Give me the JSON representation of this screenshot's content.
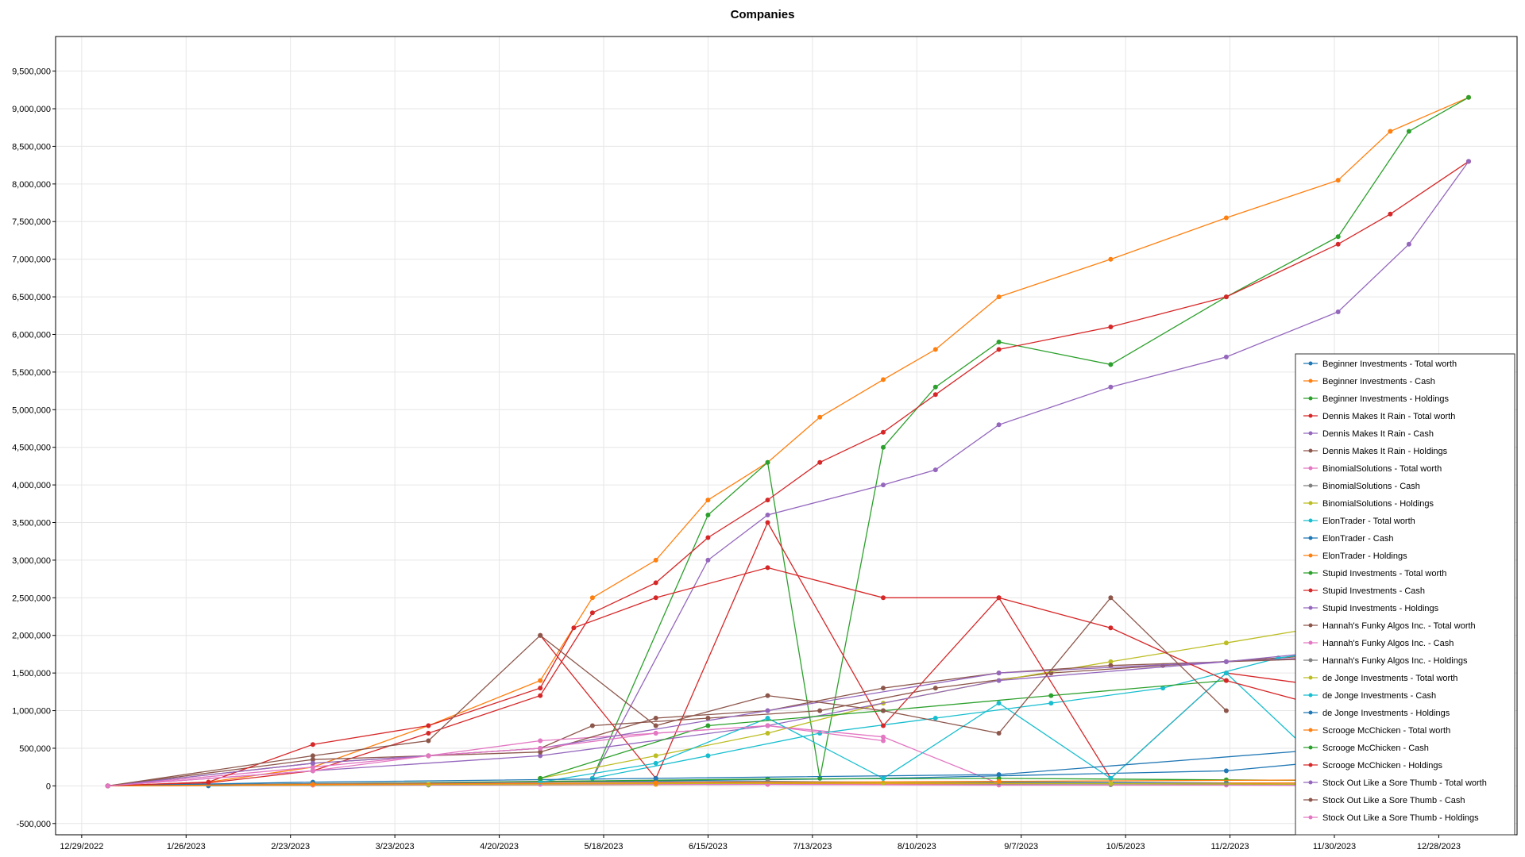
{
  "window": {
    "title": "Companies"
  },
  "chart_data": {
    "type": "line",
    "title": "Companies",
    "xlabel": "",
    "ylabel": "",
    "x_axis_type": "date",
    "xlim": [
      "2022-12-22",
      "2024-01-18"
    ],
    "ylim": [
      -650000,
      9960000
    ],
    "x_ticks": [
      "12/29/2022",
      "1/26/2023",
      "2/23/2023",
      "3/23/2023",
      "4/20/2023",
      "5/18/2023",
      "6/15/2023",
      "7/13/2023",
      "8/10/2023",
      "9/7/2023",
      "10/5/2023",
      "11/2/2023",
      "11/30/2023",
      "12/28/2023"
    ],
    "y_ticks": [
      "-500,000",
      "0",
      "500,000",
      "1,000,000",
      "1,500,000",
      "2,000,000",
      "2,500,000",
      "3,000,000",
      "3,500,000",
      "4,000,000",
      "4,500,000",
      "5,000,000",
      "5,500,000",
      "6,000,000",
      "6,500,000",
      "7,000,000",
      "7,500,000",
      "8,000,000",
      "8,500,000",
      "9,000,000",
      "9,500,000"
    ],
    "grid": true,
    "legend_position": "right",
    "series": [
      {
        "name": "Beginner Investments - Total worth",
        "color": "#1f77b4",
        "x": [
          "2023-01-05",
          "2023-03-01",
          "2023-05-01",
          "2023-07-01",
          "2023-09-01",
          "2023-11-01",
          "2024-01-05"
        ],
        "y": [
          0,
          20000,
          30000,
          40000,
          50000,
          40000,
          30000
        ]
      },
      {
        "name": "Beginner Investments - Cash",
        "color": "#ff7f0e",
        "x": [
          "2023-01-05",
          "2023-02-01",
          "2023-03-01",
          "2023-04-01",
          "2023-05-01",
          "2023-05-15",
          "2023-06-01",
          "2023-06-15",
          "2023-07-01",
          "2023-07-15",
          "2023-08-01",
          "2023-08-15",
          "2023-09-01",
          "2023-10-01",
          "2023-11-01",
          "2023-12-01",
          "2023-12-15",
          "2024-01-05"
        ],
        "y": [
          0,
          50000,
          250000,
          800000,
          1400000,
          2500000,
          3000000,
          3800000,
          4300000,
          4900000,
          5400000,
          5800000,
          6500000,
          7000000,
          7550000,
          8050000,
          8700000,
          9150000
        ]
      },
      {
        "name": "Beginner Investments - Holdings",
        "color": "#2ca02c",
        "x": [
          "2023-05-15",
          "2023-06-15",
          "2023-07-01",
          "2023-07-15",
          "2023-08-01",
          "2023-08-15",
          "2023-09-01",
          "2023-10-01",
          "2023-11-01",
          "2023-12-01",
          "2023-12-20",
          "2024-01-05"
        ],
        "y": [
          100000,
          3600000,
          4300000,
          100000,
          4500000,
          5300000,
          5900000,
          5600000,
          6500000,
          7300000,
          8700000,
          9150000
        ]
      },
      {
        "name": "Dennis Makes It Rain - Total worth",
        "color": "#d62728",
        "x": [
          "2023-01-05",
          "2023-02-01",
          "2023-03-01",
          "2023-04-01",
          "2023-05-01",
          "2023-05-15",
          "2023-06-01",
          "2023-06-15",
          "2023-07-01",
          "2023-07-15",
          "2023-08-01",
          "2023-08-15",
          "2023-09-01",
          "2023-10-01",
          "2023-11-01",
          "2023-12-01",
          "2023-12-15",
          "2024-01-05"
        ],
        "y": [
          0,
          40000,
          200000,
          700000,
          1200000,
          2300000,
          2700000,
          3300000,
          3800000,
          4300000,
          4700000,
          5200000,
          5800000,
          6100000,
          6500000,
          7200000,
          7600000,
          8300000
        ]
      },
      {
        "name": "Dennis Makes It Rain - Cash",
        "color": "#9467bd",
        "x": [
          "2023-05-15",
          "2023-06-15",
          "2023-07-01",
          "2023-08-01",
          "2023-08-15",
          "2023-09-01",
          "2023-10-01",
          "2023-11-01",
          "2023-12-01",
          "2023-12-20",
          "2024-01-05"
        ],
        "y": [
          100000,
          3000000,
          3600000,
          4000000,
          4200000,
          4800000,
          5300000,
          5700000,
          6300000,
          7200000,
          8300000
        ]
      },
      {
        "name": "Dennis Makes It Rain - Holdings",
        "color": "#8c564b",
        "x": [
          "2023-01-05",
          "2023-03-01",
          "2023-04-01",
          "2023-05-01",
          "2023-05-15",
          "2023-06-15",
          "2023-07-15",
          "2023-08-15",
          "2023-09-15",
          "2023-10-15",
          "2023-11-15",
          "2023-12-15"
        ],
        "y": [
          0,
          300000,
          400000,
          500000,
          800000,
          900000,
          1000000,
          1300000,
          1500000,
          1600000,
          1700000,
          1800000
        ]
      },
      {
        "name": "BinomialSolutions - Total worth",
        "color": "#e377c2",
        "x": [
          "2023-01-05",
          "2023-03-01",
          "2023-04-01",
          "2023-05-01",
          "2023-06-01",
          "2023-07-01",
          "2023-08-01",
          "2023-09-01"
        ],
        "y": [
          0,
          250000,
          400000,
          600000,
          700000,
          800000,
          650000,
          30000
        ]
      },
      {
        "name": "BinomialSolutions - Cash",
        "color": "#7f7f7f",
        "x": [
          "2023-01-05",
          "2023-04-01",
          "2023-07-01",
          "2023-10-01",
          "2024-01-05"
        ],
        "y": [
          0,
          10000,
          20000,
          15000,
          10000
        ]
      },
      {
        "name": "BinomialSolutions - Holdings",
        "color": "#bcbd22",
        "x": [
          "2023-05-01",
          "2023-06-01",
          "2023-07-01",
          "2023-08-01",
          "2023-09-01",
          "2023-10-01",
          "2023-11-01",
          "2023-12-01"
        ],
        "y": [
          100000,
          400000,
          700000,
          1100000,
          1400000,
          1650000,
          1900000,
          2150000
        ]
      },
      {
        "name": "ElonTrader - Total worth",
        "color": "#17becf",
        "x": [
          "2023-05-15",
          "2023-06-15",
          "2023-07-15",
          "2023-08-15",
          "2023-09-15",
          "2023-10-15",
          "2023-11-15",
          "2023-12-15"
        ],
        "y": [
          100000,
          400000,
          700000,
          900000,
          1100000,
          1300000,
          1700000,
          1900000
        ]
      },
      {
        "name": "ElonTrader - Cash",
        "color": "#1f77b4",
        "x": [
          "2023-02-01",
          "2023-05-01",
          "2023-08-01",
          "2023-11-01",
          "2024-01-05"
        ],
        "y": [
          0,
          50000,
          100000,
          200000,
          500000
        ]
      },
      {
        "name": "ElonTrader - Holdings",
        "color": "#ff7f0e",
        "x": [
          "2023-01-05",
          "2023-03-01",
          "2023-06-01",
          "2023-09-01",
          "2023-12-01"
        ],
        "y": [
          0,
          10000,
          20000,
          30000,
          40000
        ]
      },
      {
        "name": "Stupid Investments - Total worth",
        "color": "#2ca02c",
        "x": [
          "2023-01-05",
          "2023-03-01",
          "2023-05-01",
          "2023-07-01",
          "2023-09-01",
          "2023-11-01",
          "2024-01-05"
        ],
        "y": [
          0,
          30000,
          60000,
          90000,
          100000,
          80000,
          60000
        ]
      },
      {
        "name": "Stupid Investments - Cash",
        "color": "#d62728",
        "x": [
          "2023-05-01",
          "2023-06-01",
          "2023-07-01",
          "2023-08-01",
          "2023-09-01",
          "2023-10-01",
          "2023-11-01",
          "2023-12-01"
        ],
        "y": [
          2000000,
          100000,
          3500000,
          800000,
          2500000,
          100000,
          1500000,
          1300000
        ]
      },
      {
        "name": "Stupid Investments - Holdings",
        "color": "#9467bd",
        "x": [
          "2023-01-05",
          "2023-03-01",
          "2023-05-01",
          "2023-07-01",
          "2023-09-01",
          "2023-11-01",
          "2024-01-05"
        ],
        "y": [
          0,
          200000,
          400000,
          800000,
          1400000,
          1650000,
          1800000
        ]
      },
      {
        "name": "Hannah's Funky Algos Inc. - Total worth",
        "color": "#8c564b",
        "x": [
          "2023-01-05",
          "2023-03-01",
          "2023-04-01",
          "2023-05-01",
          "2023-06-01",
          "2023-07-01",
          "2023-08-01",
          "2023-09-01",
          "2023-10-01",
          "2023-11-01",
          "2023-12-01"
        ],
        "y": [
          0,
          350000,
          400000,
          450000,
          900000,
          1000000,
          1300000,
          1500000,
          1600000,
          1650000,
          1700000
        ]
      },
      {
        "name": "Hannah's Funky Algos Inc. - Cash",
        "color": "#e377c2",
        "x": [
          "2023-01-05",
          "2023-03-01",
          "2023-05-01",
          "2023-07-01",
          "2023-09-01",
          "2023-11-01",
          "2024-01-05"
        ],
        "y": [
          0,
          10000,
          20000,
          20000,
          10000,
          10000,
          0
        ]
      },
      {
        "name": "Hannah's Funky Algos Inc. - Holdings",
        "color": "#7f7f7f",
        "x": [
          "2023-01-05",
          "2023-03-01",
          "2023-05-01",
          "2023-07-01",
          "2023-09-01",
          "2023-11-01"
        ],
        "y": [
          0,
          30000,
          50000,
          60000,
          40000,
          30000
        ]
      },
      {
        "name": "de Jonge Investments - Total worth",
        "color": "#bcbd22",
        "x": [
          "2023-01-05",
          "2023-04-01",
          "2023-06-01",
          "2023-08-01",
          "2023-10-01",
          "2023-12-01"
        ],
        "y": [
          0,
          20000,
          30000,
          40000,
          30000,
          20000
        ]
      },
      {
        "name": "de Jonge Investments - Cash",
        "color": "#17becf",
        "x": [
          "2023-05-01",
          "2023-06-01",
          "2023-07-01",
          "2023-08-01",
          "2023-09-01",
          "2023-10-01",
          "2023-11-01",
          "2023-12-01"
        ],
        "y": [
          50000,
          300000,
          900000,
          100000,
          1100000,
          100000,
          1500000,
          100000
        ]
      },
      {
        "name": "de Jonge Investments - Holdings",
        "color": "#1f77b4",
        "x": [
          "2023-01-05",
          "2023-03-01",
          "2023-06-01",
          "2023-09-01",
          "2023-12-01"
        ],
        "y": [
          0,
          50000,
          100000,
          150000,
          500000
        ]
      },
      {
        "name": "Scrooge McChicken - Total worth",
        "color": "#ff7f0e",
        "x": [
          "2023-01-05",
          "2023-03-01",
          "2023-06-01",
          "2023-09-01",
          "2023-12-01"
        ],
        "y": [
          0,
          20000,
          40000,
          60000,
          80000
        ]
      },
      {
        "name": "Scrooge McChicken - Cash",
        "color": "#2ca02c",
        "x": [
          "2023-05-01",
          "2023-06-15",
          "2023-08-01",
          "2023-09-15",
          "2023-11-01"
        ],
        "y": [
          100000,
          800000,
          1000000,
          1200000,
          1400000
        ]
      },
      {
        "name": "Scrooge McChicken - Holdings",
        "color": "#d62728",
        "x": [
          "2023-01-05",
          "2023-02-01",
          "2023-03-01",
          "2023-04-01",
          "2023-05-01",
          "2023-05-10",
          "2023-06-01",
          "2023-07-01",
          "2023-08-01",
          "2023-09-01",
          "2023-10-01",
          "2023-11-01",
          "2023-12-01"
        ],
        "y": [
          0,
          50000,
          550000,
          800000,
          1300000,
          2100000,
          2500000,
          2900000,
          2500000,
          2500000,
          2100000,
          1400000,
          1000000
        ]
      },
      {
        "name": "Stock Out Like a Sore Thumb - Total worth",
        "color": "#9467bd",
        "x": [
          "2023-01-05",
          "2023-03-01",
          "2023-05-01",
          "2023-07-01",
          "2023-09-01",
          "2023-11-01",
          "2023-12-01"
        ],
        "y": [
          0,
          300000,
          500000,
          1000000,
          1500000,
          1650000,
          1800000
        ]
      },
      {
        "name": "Stock Out Like a Sore Thumb - Cash",
        "color": "#8c564b",
        "x": [
          "2023-01-05",
          "2023-03-01",
          "2023-04-01",
          "2023-05-01",
          "2023-06-01",
          "2023-07-01",
          "2023-08-01",
          "2023-09-01",
          "2023-10-01",
          "2023-11-01"
        ],
        "y": [
          0,
          400000,
          600000,
          2000000,
          800000,
          1200000,
          1000000,
          700000,
          2500000,
          1000000
        ]
      },
      {
        "name": "Stock Out Like a Sore Thumb - Holdings",
        "color": "#e377c2",
        "x": [
          "2023-01-05",
          "2023-03-01",
          "2023-04-01",
          "2023-05-01",
          "2023-06-01",
          "2023-07-01",
          "2023-08-01"
        ],
        "y": [
          0,
          200000,
          400000,
          500000,
          700000,
          800000,
          600000
        ]
      }
    ]
  }
}
